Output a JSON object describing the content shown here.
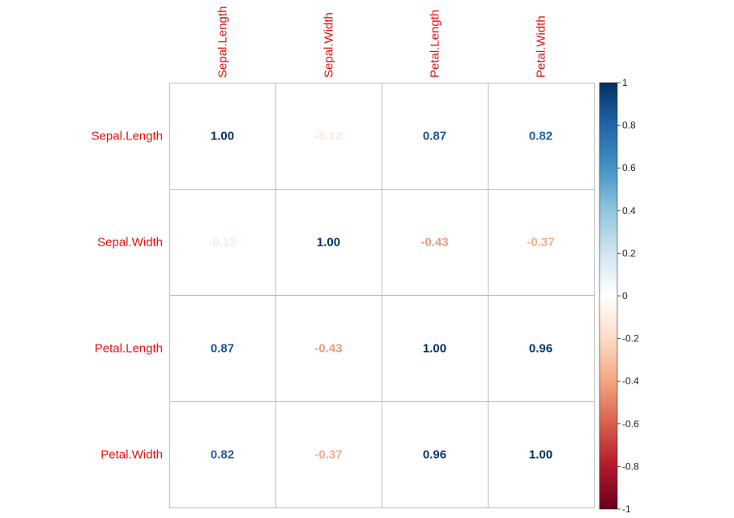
{
  "chart_data": {
    "type": "heatmap",
    "title": "",
    "method": "number",
    "variables": [
      "Sepal.Length",
      "Sepal.Width",
      "Petal.Length",
      "Petal.Width"
    ],
    "matrix": [
      [
        1.0,
        -0.12,
        0.87,
        0.82
      ],
      [
        -0.12,
        1.0,
        -0.43,
        -0.37
      ],
      [
        0.87,
        -0.43,
        1.0,
        0.96
      ],
      [
        0.82,
        -0.37,
        0.96,
        1.0
      ]
    ],
    "labels": [
      [
        "1.00",
        "-0.12",
        "0.87",
        "0.82"
      ],
      [
        "-0.12",
        "1.00",
        "-0.43",
        "-0.37"
      ],
      [
        "0.87",
        "-0.43",
        "1.00",
        "0.96"
      ],
      [
        "0.82",
        "-0.37",
        "0.96",
        "1.00"
      ]
    ],
    "colorbar": {
      "range": [
        -1,
        1
      ],
      "ticks": [
        "1",
        "0.8",
        "0.6",
        "0.4",
        "0.2",
        "0",
        "-0.2",
        "-0.4",
        "-0.6",
        "-0.8",
        "-1"
      ],
      "colors": [
        "#67001F",
        "#B2182B",
        "#D6604D",
        "#F4A582",
        "#FDDBC7",
        "#FFFFFF",
        "#D1E5F0",
        "#92C5DE",
        "#4393C3",
        "#2166AC",
        "#053061"
      ]
    },
    "label_color": "#E8100F",
    "grid_color": "#BEBEBE"
  }
}
